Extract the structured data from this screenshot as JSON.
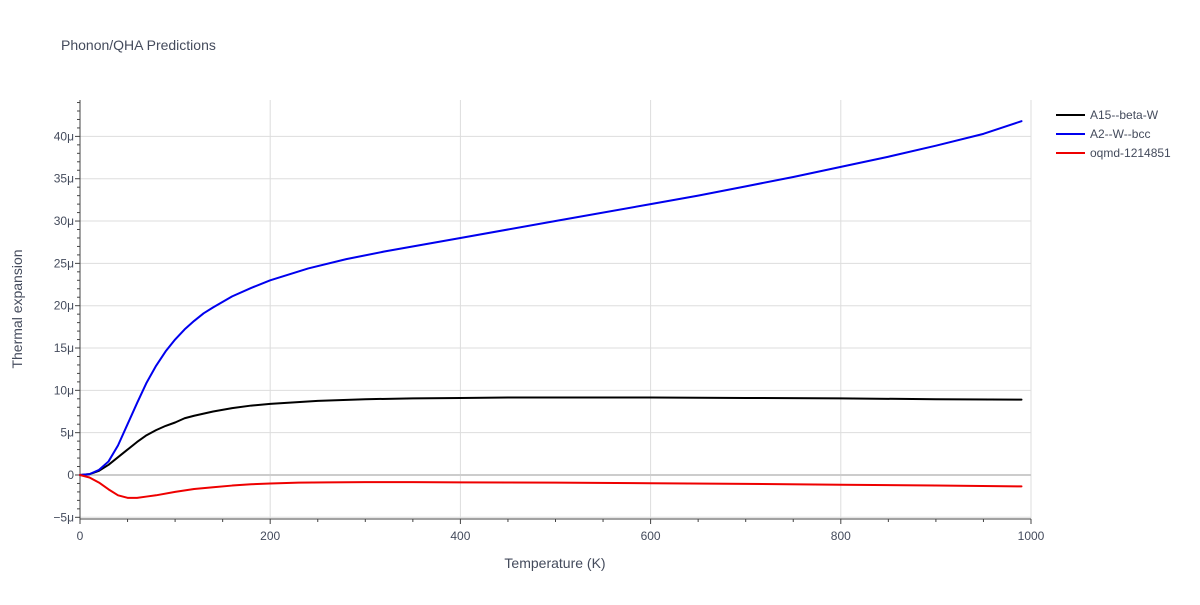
{
  "chart_data": {
    "type": "line",
    "title": "Phonon/QHA Predictions",
    "xlabel": "Temperature (K)",
    "ylabel": "Thermal expansion",
    "xlim": [
      0,
      1000
    ],
    "ylim": [
      -5.2,
      44.3
    ],
    "x_ticks": [
      0,
      200,
      400,
      600,
      800,
      1000
    ],
    "x_tick_labels": [
      "0",
      "200",
      "400",
      "600",
      "800",
      "1000"
    ],
    "y_ticks": [
      -5,
      0,
      5,
      10,
      15,
      20,
      25,
      30,
      35,
      40
    ],
    "y_tick_labels": [
      "−5μ",
      "0",
      "5μ",
      "10μ",
      "15μ",
      "20μ",
      "25μ",
      "30μ",
      "35μ",
      "40μ"
    ],
    "y_unit": "μ (×10⁻⁶)",
    "grid": true,
    "legend_position": "top-right outside plot",
    "series": [
      {
        "name": "A15--beta-W",
        "color": "#000000",
        "x": [
          0,
          10,
          20,
          30,
          40,
          50,
          60,
          70,
          80,
          90,
          100,
          110,
          120,
          140,
          160,
          180,
          200,
          250,
          300,
          350,
          400,
          450,
          500,
          600,
          700,
          800,
          900,
          990
        ],
        "y": [
          0,
          0.1,
          0.5,
          1.2,
          2.1,
          3.0,
          3.9,
          4.7,
          5.3,
          5.8,
          6.2,
          6.7,
          7.0,
          7.5,
          7.9,
          8.2,
          8.4,
          8.75,
          8.95,
          9.05,
          9.1,
          9.15,
          9.15,
          9.15,
          9.1,
          9.05,
          8.95,
          8.9
        ]
      },
      {
        "name": "A2--W--bcc",
        "color": "#0000ee",
        "x": [
          0,
          10,
          20,
          30,
          40,
          50,
          60,
          70,
          80,
          90,
          100,
          110,
          120,
          130,
          140,
          160,
          180,
          200,
          240,
          280,
          320,
          400,
          500,
          600,
          650,
          700,
          750,
          800,
          850,
          900,
          950,
          990
        ],
        "y": [
          0,
          0.1,
          0.6,
          1.6,
          3.5,
          6.0,
          8.5,
          10.9,
          12.9,
          14.6,
          16.0,
          17.2,
          18.2,
          19.1,
          19.8,
          21.1,
          22.1,
          23.0,
          24.4,
          25.5,
          26.4,
          28.0,
          30.0,
          32.0,
          33.0,
          34.1,
          35.2,
          36.4,
          37.6,
          38.9,
          40.3,
          41.8
        ]
      },
      {
        "name": "oqmd-1214851",
        "color": "#ee0000",
        "x": [
          0,
          10,
          20,
          30,
          40,
          50,
          60,
          70,
          80,
          100,
          120,
          140,
          160,
          180,
          200,
          230,
          260,
          300,
          350,
          400,
          500,
          600,
          700,
          800,
          900,
          990
        ],
        "y": [
          0,
          -0.3,
          -0.9,
          -1.7,
          -2.4,
          -2.7,
          -2.7,
          -2.55,
          -2.4,
          -2.0,
          -1.65,
          -1.45,
          -1.25,
          -1.1,
          -1.0,
          -0.9,
          -0.88,
          -0.85,
          -0.85,
          -0.88,
          -0.9,
          -0.98,
          -1.05,
          -1.15,
          -1.25,
          -1.35
        ]
      }
    ]
  }
}
